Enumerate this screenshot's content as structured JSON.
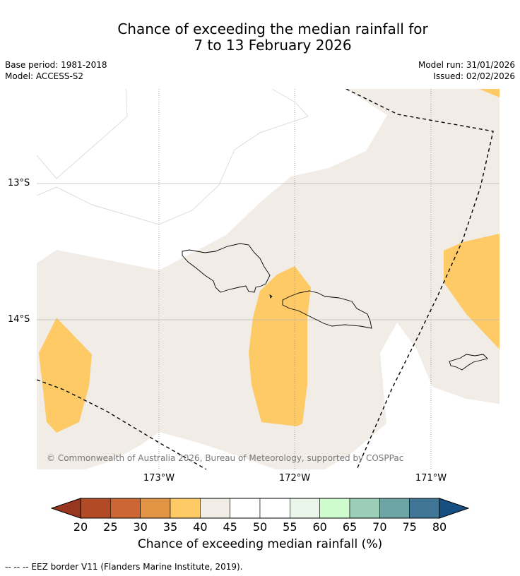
{
  "title_line1": "Chance of exceeding the median rainfall for",
  "title_line2": "7 to 13 February 2026",
  "base_period": "Base period: 1981-2018",
  "model": "Model: ACCESS-S2",
  "model_run": "Model run: 31/01/2026",
  "issued": "Issued: 02/02/2026",
  "copyright": "© Commonwealth of Australia 2026, Bureau of Meteorology, supported by COSPPac",
  "lat_labels": [
    "13°S",
    "14°S"
  ],
  "lon_labels": [
    "173°W",
    "172°W",
    "171°W"
  ],
  "colorbar": {
    "ticks": [
      "20",
      "25",
      "30",
      "35",
      "40",
      "45",
      "50",
      "55",
      "60",
      "65",
      "70",
      "75",
      "80"
    ],
    "colors": [
      "#b24a26",
      "#cd6635",
      "#e29445",
      "#fdca66",
      "#f1ece5",
      "#ffffff",
      "#ffffff",
      "#e8f5e8",
      "#cefccc",
      "#9ccdb8",
      "#6da5a5",
      "#3f7695"
    ],
    "under_color": "#99361f",
    "over_color": "#174f82",
    "label": "Chance of exceeding median rainfall (%)"
  },
  "legend_note": "--  --  -- EEZ border V11 (Flanders Marine Institute, 2019)."
}
